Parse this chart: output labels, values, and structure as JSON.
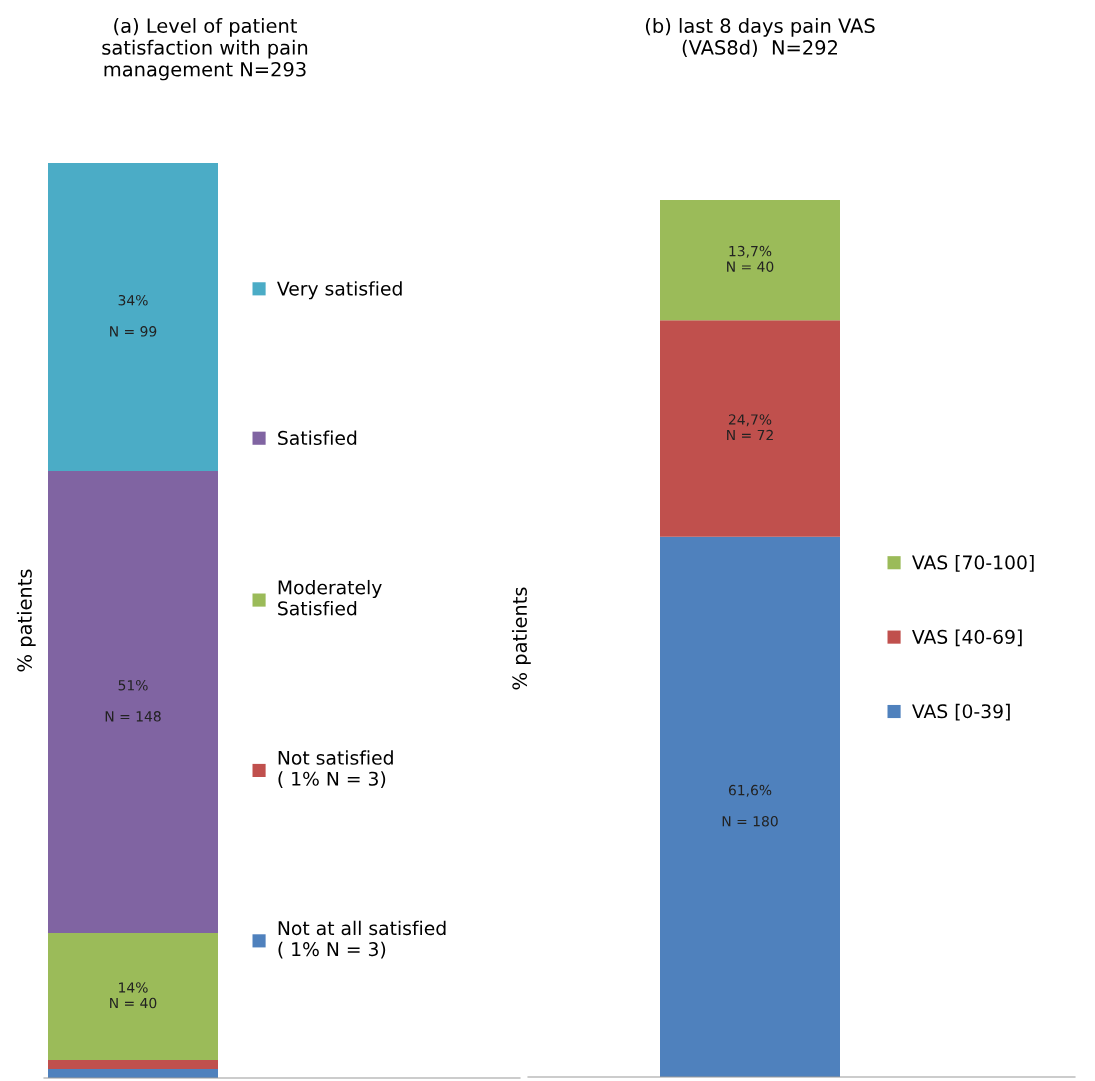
{
  "chart_data": [
    {
      "type": "bar",
      "title": "(a) Level of patient\nsatisfaction with pain\nmanagement N=293",
      "ylabel": "% patients",
      "categories": [
        null
      ],
      "stacked": true,
      "legend": "right",
      "ylim": [
        0,
        101
      ],
      "tick_labels": false,
      "series": [
        {
          "name": "Not at all satisfied\n( 1% N = 3)",
          "color": "#4f81bd",
          "values": [
            1
          ],
          "value_labels": [
            null
          ]
        },
        {
          "name": "Not satisfied\n( 1% N = 3)",
          "color": "#c0504d",
          "values": [
            1
          ],
          "value_labels": [
            null
          ]
        },
        {
          "name": "Moderately\nSatisfied",
          "color": "#9bbb59",
          "values": [
            14
          ],
          "value_labels": [
            "14%\nN = 40"
          ]
        },
        {
          "name": "Satisfied",
          "color": "#8064a2",
          "values": [
            51
          ],
          "value_labels": [
            "51%\n\nN = 148"
          ]
        },
        {
          "name": "Very satisfied",
          "color": "#4bacc6",
          "values": [
            34
          ],
          "value_labels": [
            "34%\n\nN = 99"
          ]
        }
      ]
    },
    {
      "type": "bar",
      "title": "(b) last 8 days pain VAS\n(VAS8d)  N=292",
      "ylabel": "% patients",
      "categories": [
        null
      ],
      "stacked": true,
      "legend": "right",
      "ylim": [
        0,
        100
      ],
      "tick_labels": false,
      "series": [
        {
          "name": "VAS [0-39]",
          "color": "#4f81bd",
          "values": [
            61.6
          ],
          "value_labels": [
            "61,6%\n\nN = 180"
          ]
        },
        {
          "name": "VAS [40-69]",
          "color": "#c0504d",
          "values": [
            24.7
          ],
          "value_labels": [
            "24,7%\nN = 72"
          ]
        },
        {
          "name": "VAS [70-100]",
          "color": "#9bbb59",
          "values": [
            13.7
          ],
          "value_labels": [
            "13,7%\nN = 40"
          ]
        }
      ]
    }
  ]
}
